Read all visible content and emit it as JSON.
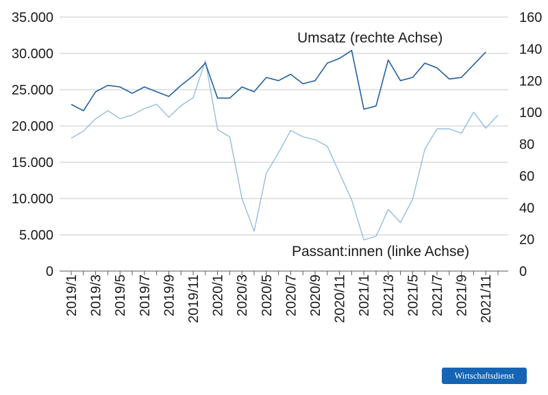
{
  "chart_data": {
    "type": "line",
    "categories": [
      "2019/1",
      "2019/2",
      "2019/3",
      "2019/4",
      "2019/5",
      "2019/6",
      "2019/7",
      "2019/8",
      "2019/9",
      "2019/10",
      "2019/11",
      "2019/12",
      "2020/1",
      "2020/2",
      "2020/3",
      "2020/4",
      "2020/5",
      "2020/6",
      "2020/7",
      "2020/8",
      "2020/9",
      "2020/10",
      "2020/11",
      "2020/12",
      "2021/1",
      "2021/2",
      "2021/3",
      "2021/4",
      "2021/5",
      "2021/6",
      "2021/7",
      "2021/8",
      "2021/9",
      "2021/10",
      "2021/11",
      "2021/12"
    ],
    "x_tick_labels": [
      "2019/1",
      "2019/3",
      "2019/5",
      "2019/7",
      "2019/9",
      "2019/11",
      "2020/1",
      "2020/3",
      "2020/5",
      "2020/7",
      "2020/9",
      "2020/11",
      "2021/1",
      "2021/3",
      "2021/5",
      "2021/7",
      "2021/9",
      "2021/11"
    ],
    "left_axis": {
      "ylim": [
        0,
        35000
      ],
      "tick_labels": [
        "0",
        "5.000",
        "10.000",
        "15.000",
        "20.000",
        "25.000",
        "30.000",
        "35.000"
      ]
    },
    "right_axis": {
      "ylim": [
        0,
        160
      ],
      "tick_labels": [
        "0",
        "20",
        "40",
        "60",
        "80",
        "100",
        "120",
        "140",
        "160"
      ]
    },
    "series": [
      {
        "name": "Umsatz (rechte Achse)",
        "axis": "right",
        "color": "#1f5f9e",
        "values": [
          105,
          101,
          113,
          117,
          116,
          112,
          116,
          113,
          110,
          117,
          123,
          131,
          109,
          109,
          116,
          113,
          122,
          120,
          124,
          118,
          120,
          131,
          134,
          139,
          102,
          104,
          133,
          120,
          122,
          131,
          128,
          121,
          122,
          130,
          138,
          null
        ]
      },
      {
        "name": "Passant:innen (linke Achse)",
        "axis": "left",
        "color": "#8bb8de",
        "values": [
          18300,
          19300,
          21000,
          22100,
          21000,
          21500,
          22400,
          23000,
          21200,
          22800,
          23900,
          29000,
          19500,
          18500,
          10000,
          5500,
          13500,
          16300,
          19400,
          18500,
          18100,
          17200,
          13500,
          9800,
          4300,
          4800,
          8500,
          6700,
          9900,
          16800,
          19600,
          19600,
          19000,
          21900,
          19700,
          21500
        ]
      }
    ],
    "annotations": [
      "Umsatz (rechte Achse)",
      "Passant:innen (linke Achse)"
    ],
    "grid": true
  },
  "branding": {
    "label": "Wirtschaftsdienst"
  }
}
